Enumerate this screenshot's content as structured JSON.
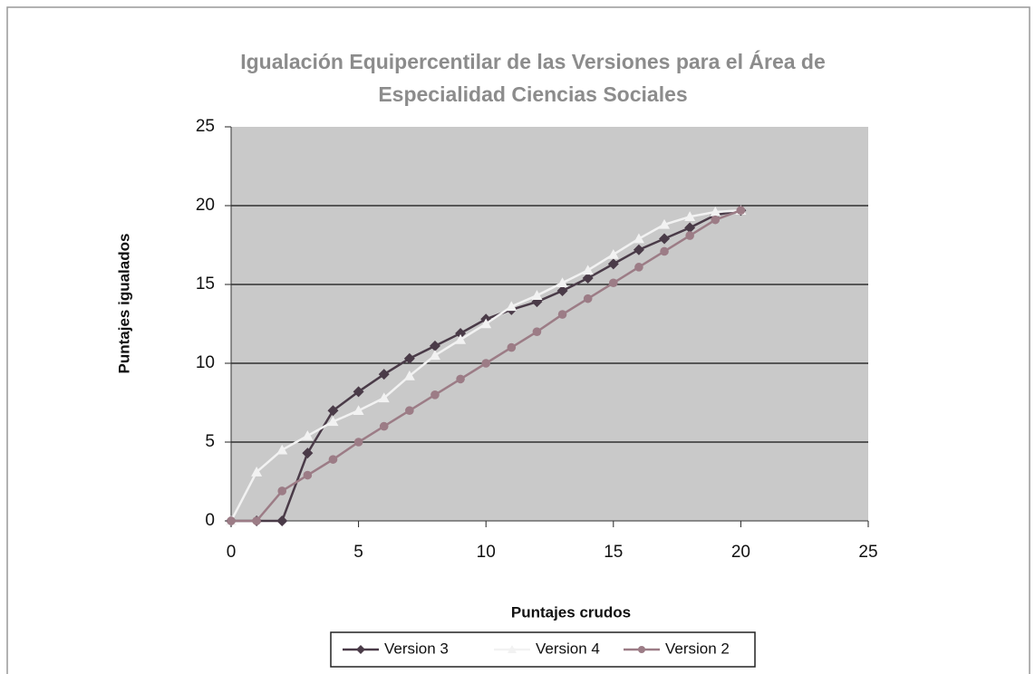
{
  "chart_data": {
    "type": "line",
    "title": [
      "Igualación  Equipercentilar de las Versiones para el Área de",
      "Especialidad Ciencias Sociales"
    ],
    "x_label": "Puntajes crudos",
    "y_label": "Puntajes igualados",
    "x": [
      0,
      1,
      2,
      3,
      4,
      5,
      6,
      7,
      8,
      9,
      10,
      11,
      12,
      13,
      14,
      15,
      16,
      17,
      18,
      19,
      20
    ],
    "series": [
      {
        "name": "Version 3",
        "color": "#4a3b48",
        "marker": "diamond",
        "values": [
          0,
          0,
          0,
          4.3,
          7,
          8.2,
          9.3,
          10.3,
          11.1,
          11.9,
          12.8,
          13.4,
          13.9,
          14.6,
          15.4,
          16.3,
          17.2,
          17.9,
          18.6,
          19.4,
          19.7
        ]
      },
      {
        "name": "Version 4",
        "color": "#f2f2f2",
        "marker": "triangle",
        "values": [
          0,
          3.1,
          4.5,
          5.4,
          6.3,
          7.0,
          7.8,
          9.2,
          10.5,
          11.5,
          12.5,
          13.6,
          14.3,
          15.1,
          15.9,
          16.9,
          17.9,
          18.8,
          19.3,
          19.6,
          19.7
        ]
      },
      {
        "name": "Version 2",
        "color": "#9c7c86",
        "marker": "circle",
        "values": [
          0,
          0,
          1.9,
          2.9,
          3.9,
          5.0,
          6.0,
          7.0,
          8.0,
          9.0,
          10.0,
          11.0,
          12.0,
          13.1,
          14.1,
          15.1,
          16.1,
          17.1,
          18.1,
          19.1,
          19.7
        ]
      }
    ],
    "xlim": [
      0,
      25
    ],
    "xticks": [
      0,
      5,
      10,
      15,
      20,
      25
    ],
    "ylim": [
      0,
      25
    ],
    "yticks": [
      0,
      5,
      10,
      15,
      20,
      25
    ],
    "grid": true,
    "legend": "bottom"
  }
}
